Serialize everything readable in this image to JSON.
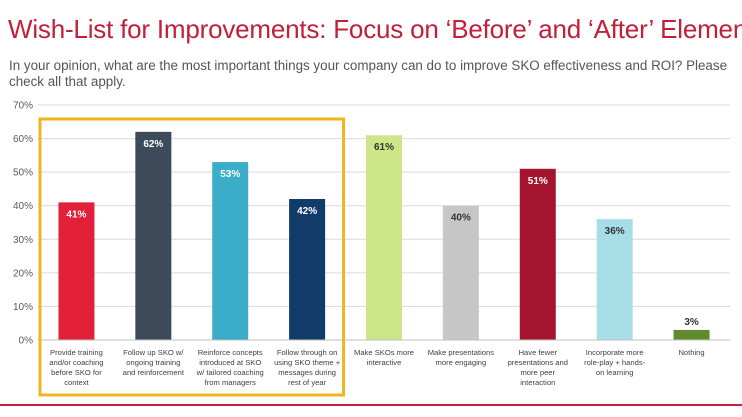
{
  "header": {
    "title": "Wish-List for Improvements: Focus on ‘Before’ and ‘After’ Elements",
    "subtitle": "In your opinion, what are the most important things your company can do to improve SKO effectiveness and ROI? Please check all that apply."
  },
  "colors": {
    "title": "#c0203a",
    "highlight_box": "#f2b41c"
  },
  "chart_data": {
    "type": "bar",
    "ylim": [
      0,
      70
    ],
    "yticks": [
      0,
      10,
      20,
      30,
      40,
      50,
      60,
      70
    ],
    "ytick_labels": [
      "0%",
      "10%",
      "20%",
      "30%",
      "40%",
      "50%",
      "60%",
      "70%"
    ],
    "grid": true,
    "categories": [
      [
        "Provide training",
        "and/or coaching",
        "before SKO for",
        "context"
      ],
      [
        "Follow up SKO w/",
        "ongoing training",
        "and reinforcement"
      ],
      [
        "Reinforce concepts",
        "introduced at SKO",
        "w/ tailored coaching",
        "from managers"
      ],
      [
        "Follow through on",
        "using SKO theme +",
        "messages during",
        "rest of year"
      ],
      [
        "Make SKOs more",
        "interactive"
      ],
      [
        "Make presentations",
        "more engaging"
      ],
      [
        "Have fewer",
        "presentations and",
        "more peer",
        "interaction"
      ],
      [
        "Incorporate more",
        "role-play + hands-",
        "on learning"
      ],
      [
        "Nothing"
      ]
    ],
    "values": [
      41,
      62,
      53,
      42,
      61,
      40,
      51,
      36,
      3
    ],
    "value_labels": [
      "41%",
      "62%",
      "53%",
      "42%",
      "61%",
      "40%",
      "51%",
      "36%",
      "3%"
    ],
    "bar_colors": [
      "#e2203a",
      "#3c4a59",
      "#3aaec8",
      "#113c6a",
      "#cde687",
      "#c6c6c6",
      "#a5142e",
      "#a7dde7",
      "#5f8b2e"
    ],
    "label_colors": [
      "#ffffff",
      "#ffffff",
      "#ffffff",
      "#ffffff",
      "#333333",
      "#333333",
      "#ffffff",
      "#333333",
      "#333333"
    ],
    "highlighted_categories": [
      0,
      1,
      2,
      3
    ]
  }
}
